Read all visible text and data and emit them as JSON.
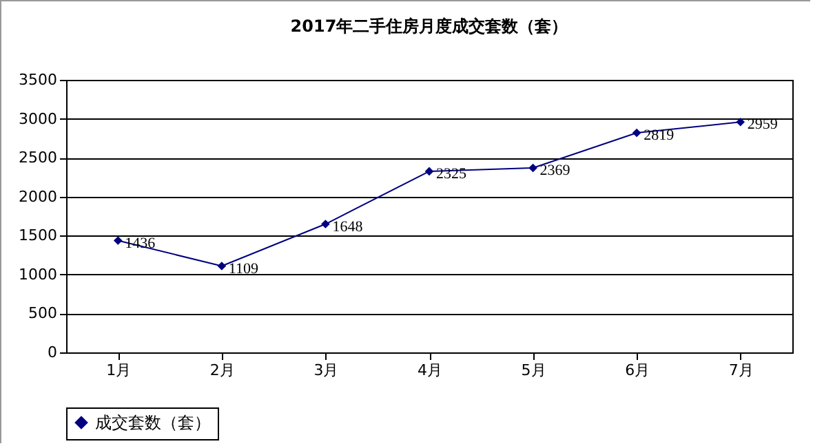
{
  "chart_data": {
    "type": "line",
    "title": "2017年二手住房月度成交套数（套）",
    "categories": [
      "1月",
      "2月",
      "3月",
      "4月",
      "5月",
      "6月",
      "7月"
    ],
    "series": [
      {
        "name": "成交套数（套）",
        "color": "#000080",
        "values": [
          1436,
          1109,
          1648,
          2325,
          2369,
          2819,
          2959
        ]
      }
    ],
    "ylim": [
      0,
      3500
    ],
    "yticks": [
      0,
      500,
      1000,
      1500,
      2000,
      2500,
      3000,
      3500
    ],
    "grid": "y",
    "legend": "bottom",
    "marker": "diamond",
    "line_style": "solid",
    "data_labels": true
  }
}
